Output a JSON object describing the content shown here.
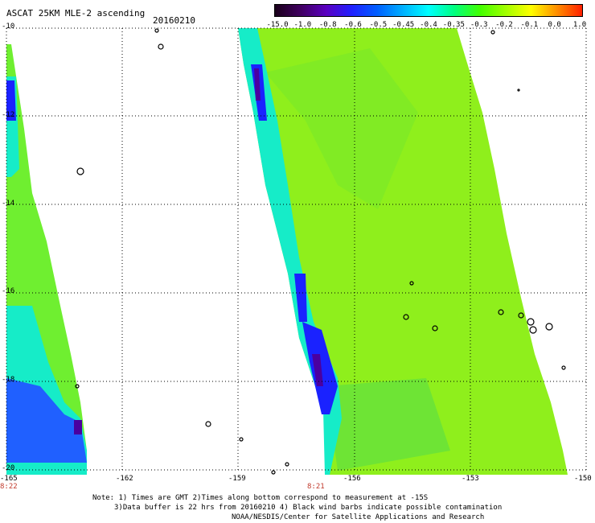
{
  "header": {
    "title": "ASCAT 25KM MLE-2 ascending",
    "date": "20160210"
  },
  "colorbar": {
    "labels": [
      "-15.0",
      "-1.0",
      "-0.8",
      "-0.6",
      "-0.5",
      "-0.45",
      "-0.4",
      "-0.35",
      "-0.3",
      "-0.2",
      "-0.1",
      "0.0",
      "1.0"
    ],
    "colors": [
      "#1a001a",
      "#400060",
      "#5a00c0",
      "#2020ff",
      "#0060ff",
      "#00b0ff",
      "#00ffff",
      "#00ff80",
      "#40ff00",
      "#a0ff00",
      "#ffff00",
      "#ff9000",
      "#ff2000"
    ]
  },
  "axes": {
    "lat_labels": [
      "-10",
      "-12",
      "-14",
      "-16",
      "-18",
      "-20"
    ],
    "lon_labels": [
      "-165",
      "-162",
      "-159",
      "-156",
      "-153",
      "-150"
    ]
  },
  "times": {
    "left": "8:22",
    "right": "8:21"
  },
  "notes": {
    "line1": "Note: 1) Times are GMT 2)Times along bottom correspond to measurement at -15S",
    "line2": "3)Data buffer is 22 hrs from 20160210 4) Black wind barbs indicate possible contamination",
    "line3": "NOAA/NESDIS/Center for Satellite Applications and Research"
  }
}
